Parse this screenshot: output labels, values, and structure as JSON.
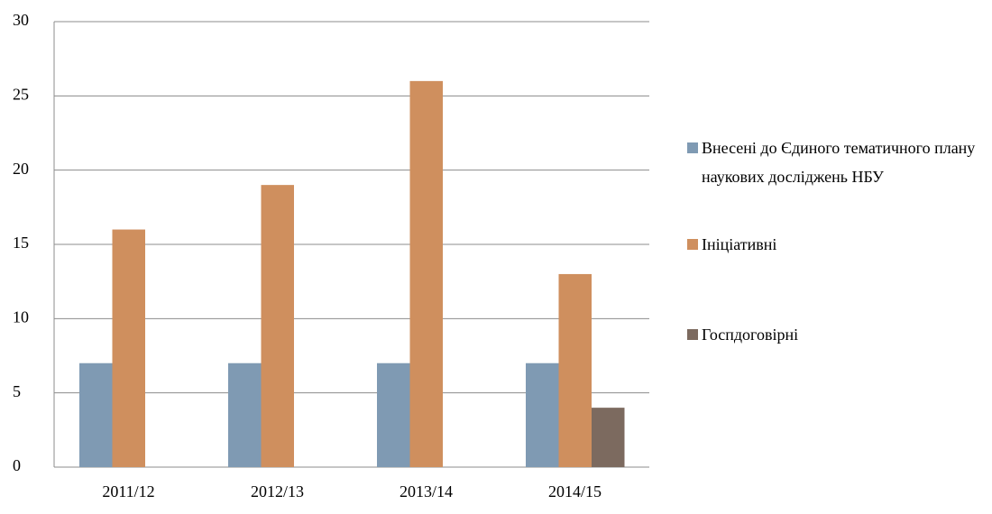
{
  "chart_data": {
    "type": "bar",
    "categories": [
      "2011/12",
      "2012/13",
      "2013/14",
      "2014/15"
    ],
    "series": [
      {
        "name": "Внесені до Єдиного тематичного плану наукових досліджень НБУ",
        "color": "#7f9ab3",
        "values": [
          7,
          7,
          7,
          7
        ]
      },
      {
        "name": "Ініціативні",
        "color": "#cf8f5e",
        "values": [
          16,
          19,
          26,
          13
        ]
      },
      {
        "name": "Госпдоговірні",
        "color": "#7c6a5f",
        "values": [
          null,
          null,
          null,
          4
        ]
      }
    ],
    "ylim": [
      0,
      30
    ],
    "yticks": [
      0,
      5,
      10,
      15,
      20,
      25,
      30
    ],
    "grid": true,
    "legend": "right"
  }
}
